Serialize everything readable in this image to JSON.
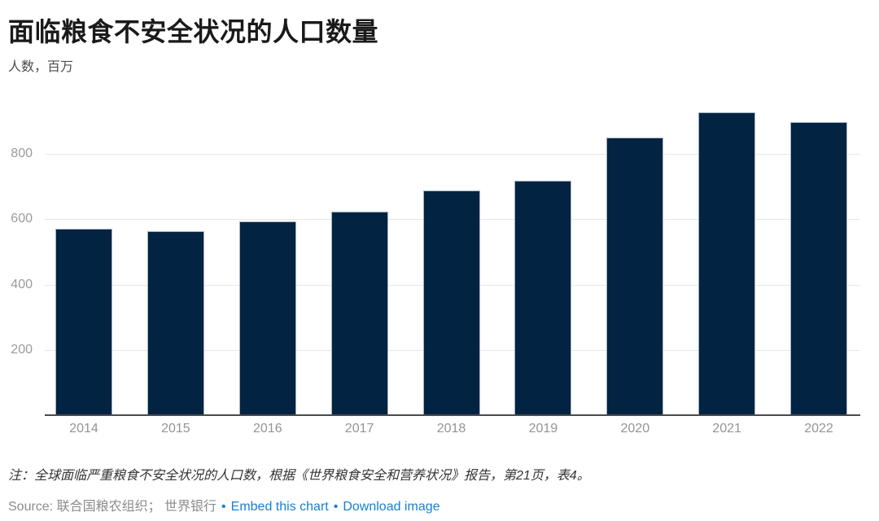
{
  "header": {
    "title": "面临粮食不安全状况的人口数量",
    "subtitle": "人数，百万"
  },
  "chart_data": {
    "type": "bar",
    "categories": [
      "2014",
      "2015",
      "2016",
      "2017",
      "2018",
      "2019",
      "2020",
      "2021",
      "2022"
    ],
    "values": [
      570,
      562,
      593,
      622,
      688,
      718,
      849,
      927,
      898
    ],
    "title": "面临粮食不安全状况的人口数量",
    "xlabel": "",
    "ylabel": "人数，百万",
    "ylim": [
      0,
      1000
    ],
    "yticks": [
      200,
      400,
      600,
      800
    ],
    "grid": true,
    "legend": "none",
    "bar_color": "#032342"
  },
  "footer": {
    "note": "注：全球面临严重粮食不安全状况的人口数，根据《世界粮食安全和营养状况》报告，第21页，表4。",
    "source_label": "Source:",
    "source_orgs": "联合国粮农组织； 世界银行",
    "bullet": "•",
    "embed_link": "Embed this chart",
    "download_link": "Download image"
  },
  "colors": {
    "bar": "#032342",
    "bar_border": "#a3b2c0",
    "grid": "#e7e7e7",
    "axis": "#4a4a4a",
    "tick_label": "#9a9a9a",
    "link": "#1780d4",
    "title": "#1a1a1a",
    "note": "#333333",
    "source": "#8c8c8c"
  }
}
